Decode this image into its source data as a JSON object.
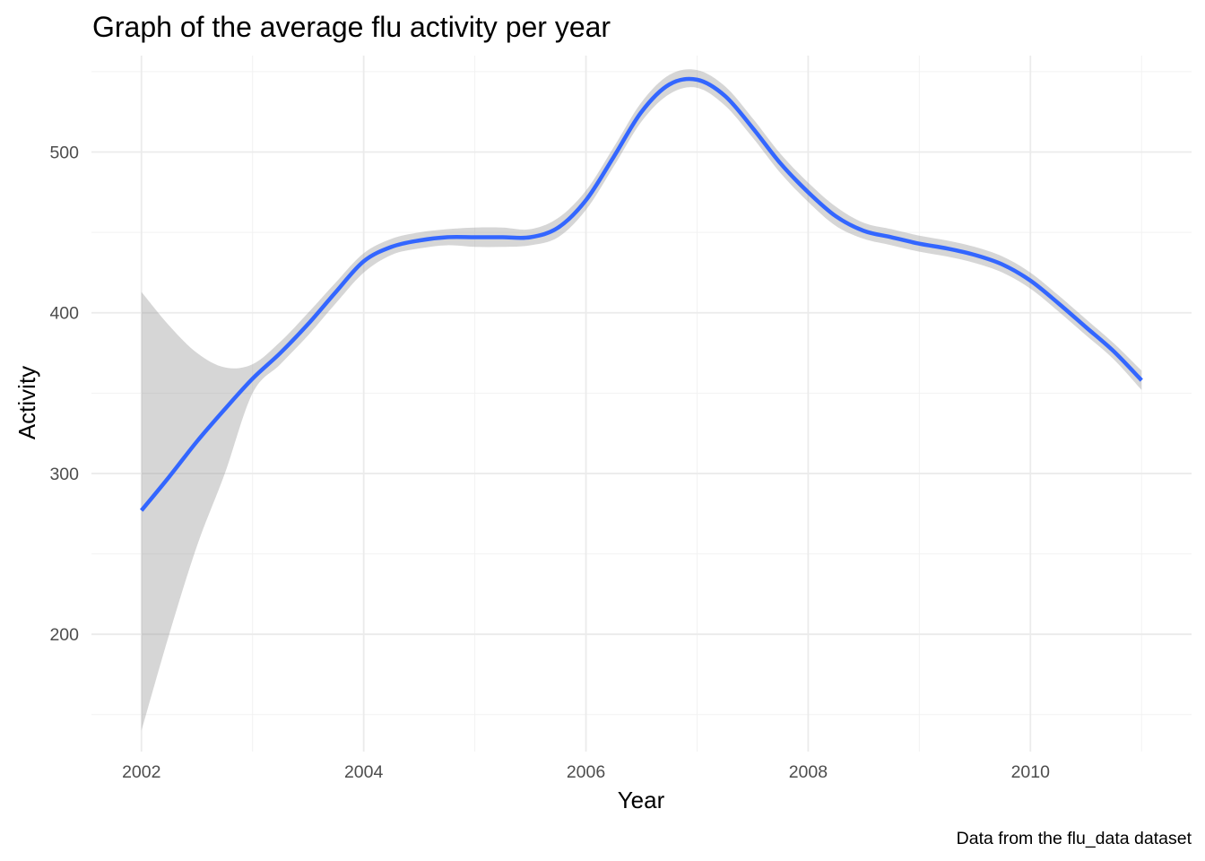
{
  "chart_data": {
    "type": "line",
    "title": "Graph of the average flu activity per year",
    "xlabel": "Year",
    "ylabel": "Activity",
    "caption": "Data from the flu_data dataset",
    "xlim": [
      2001.55,
      2011.45
    ],
    "ylim": [
      127,
      560
    ],
    "x_ticks": [
      2002,
      2004,
      2006,
      2008,
      2010
    ],
    "x_tick_labels": [
      "2002",
      "2004",
      "2006",
      "2008",
      "2010"
    ],
    "y_ticks": [
      200,
      300,
      400,
      500
    ],
    "y_tick_labels": [
      "200",
      "300",
      "400",
      "500"
    ],
    "x_minor": [
      2003,
      2005,
      2007,
      2009,
      2011
    ],
    "y_minor": [
      150,
      250,
      350,
      450,
      550
    ],
    "grid": true,
    "legend": "none",
    "series": [
      {
        "style": "smooth",
        "color": "#3366FF",
        "band_color": "#999999",
        "x": [
          2002,
          2002.25,
          2002.5,
          2002.75,
          2003,
          2003.25,
          2003.5,
          2003.75,
          2004,
          2004.25,
          2004.5,
          2004.75,
          2005,
          2005.25,
          2005.5,
          2005.75,
          2006,
          2006.25,
          2006.5,
          2006.75,
          2007,
          2007.25,
          2007.5,
          2007.75,
          2008,
          2008.25,
          2008.5,
          2008.75,
          2009,
          2009.25,
          2009.5,
          2009.75,
          2010,
          2010.25,
          2010.5,
          2010.75,
          2011
        ],
        "y": [
          277,
          298,
          320,
          340,
          359,
          375,
          393,
          413,
          432,
          441,
          445,
          447,
          447,
          447,
          447,
          453,
          470,
          497,
          525,
          542,
          545,
          535,
          515,
          493,
          475,
          460,
          451,
          447,
          443,
          440,
          436,
          430,
          420,
          406,
          391,
          376,
          358
        ],
        "lower": [
          140,
          200,
          255,
          300,
          350,
          368,
          386,
          406,
          425,
          436,
          440,
          442,
          441,
          441,
          442,
          447,
          464,
          491,
          519,
          536,
          540,
          529,
          509,
          487,
          469,
          454,
          446,
          442,
          438,
          435,
          431,
          425,
          415,
          401,
          386,
          371,
          352
        ],
        "upper": [
          413,
          392,
          375,
          366,
          368,
          382,
          400,
          419,
          437,
          446,
          450,
          452,
          453,
          453,
          452,
          459,
          476,
          503,
          531,
          548,
          551,
          541,
          521,
          499,
          481,
          466,
          456,
          452,
          448,
          445,
          441,
          435,
          425,
          411,
          396,
          381,
          364
        ]
      }
    ]
  }
}
